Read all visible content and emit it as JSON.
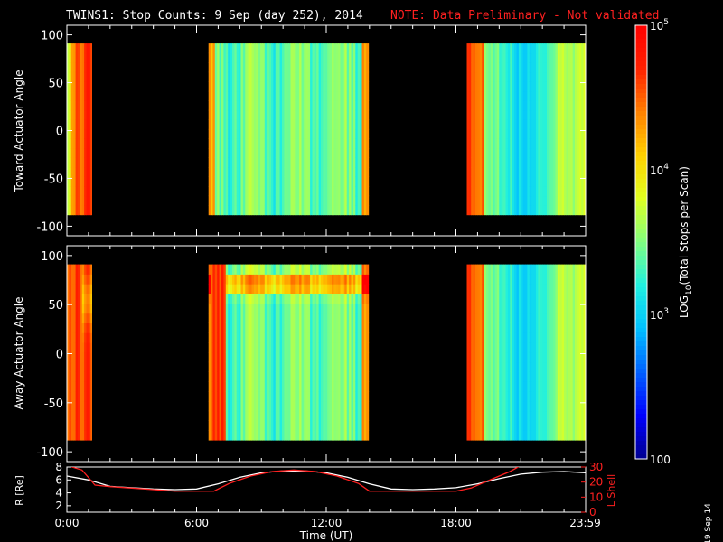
{
  "title": {
    "main": "TWINS1: Stop Counts:  9 Sep (day 252), 2014",
    "note": "NOTE: Data Preliminary - Not validated",
    "note_color": "#ff2020"
  },
  "side_date": "19 Sep 14",
  "chart_data": [
    {
      "type": "heatmap",
      "panel": "toward",
      "ylabel": "Toward Actuator Angle",
      "ylim": [
        -110,
        110
      ],
      "yticks": [
        -100,
        -50,
        0,
        50,
        100
      ],
      "xlim_hours": [
        0,
        24
      ],
      "data_blocks_hours": [
        [
          -0.5,
          1.15
        ],
        [
          6.55,
          13.95
        ],
        [
          18.5,
          23.99
        ]
      ],
      "angle_range": [
        -88,
        91
      ]
    },
    {
      "type": "heatmap",
      "panel": "away",
      "ylabel": "Away Actuator Angle",
      "ylim": [
        -110,
        110
      ],
      "yticks": [
        -100,
        -50,
        0,
        50,
        100
      ],
      "xlim_hours": [
        0,
        24
      ],
      "data_blocks_hours": [
        [
          -0.5,
          1.15
        ],
        [
          6.55,
          13.95
        ],
        [
          18.5,
          23.99
        ]
      ],
      "angle_range": [
        -88,
        91
      ]
    },
    {
      "type": "line",
      "panel": "orbit",
      "ylabel_left": "R [Re]",
      "ylabel_right": "L Shell",
      "ylim_left": [
        1,
        8
      ],
      "ylim_right": [
        0,
        30
      ],
      "yticks_left": [
        "2",
        "4",
        "6",
        "8"
      ],
      "yticks_right": [
        "0",
        "10",
        "20",
        "30"
      ],
      "xlabel": "Time (UT)",
      "xticks": [
        "0:00",
        "6:00",
        "12:00",
        "18:00",
        "23:59"
      ],
      "series": [
        {
          "name": "R",
          "color": "#ffffff",
          "x": [
            0,
            1,
            2,
            3,
            4,
            5,
            6,
            7,
            8,
            9,
            10,
            11,
            12,
            13,
            14,
            15,
            16,
            17,
            18,
            19,
            20,
            21,
            22,
            23,
            24
          ],
          "values": [
            6.6,
            6.0,
            5.0,
            4.8,
            4.6,
            4.5,
            4.6,
            5.4,
            6.4,
            7.1,
            7.4,
            7.4,
            7.1,
            6.4,
            5.4,
            4.6,
            4.5,
            4.6,
            4.8,
            5.4,
            6.2,
            6.9,
            7.2,
            7.3,
            7.1
          ]
        },
        {
          "name": "L Shell",
          "color": "#ff2020",
          "x": [
            0,
            0.7,
            1.3,
            2,
            3,
            4,
            5,
            6,
            6.8,
            7.5,
            8.5,
            9.5,
            10.5,
            11.5,
            12.5,
            13.5,
            14,
            15,
            16,
            17,
            18,
            18.7,
            19.5,
            20.5,
            21
          ],
          "values": [
            31,
            28,
            18,
            17,
            16,
            15,
            14,
            14,
            14,
            19,
            24,
            27,
            28,
            27,
            24,
            19,
            14,
            14,
            14,
            14,
            14,
            16,
            21,
            27,
            31
          ]
        }
      ]
    }
  ],
  "colorbar": {
    "label": "LOG10(Total Stops per Scan)",
    "label_parts": {
      "pre": "LOG",
      "sub": "10",
      "post": "(Total Stops per Scan)"
    },
    "range": [
      100,
      100000
    ],
    "ticks": [
      {
        "value": 100,
        "label": "100"
      },
      {
        "value": 1000,
        "base": "10",
        "exp": "3"
      },
      {
        "value": 10000,
        "base": "10",
        "exp": "4"
      },
      {
        "value": 100000,
        "base": "10",
        "exp": "5"
      }
    ],
    "colors": [
      "#000090",
      "#0000ff",
      "#0060ff",
      "#00c0ff",
      "#20f0e0",
      "#80ff80",
      "#e0ff20",
      "#ffd000",
      "#ff8000",
      "#ff2000",
      "#ff0000"
    ]
  }
}
